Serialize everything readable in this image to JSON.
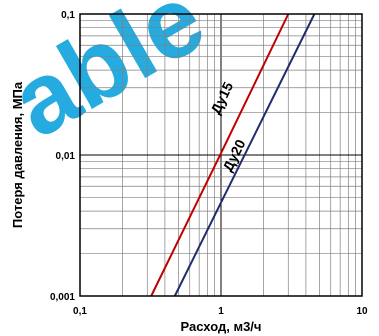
{
  "chart_data": {
    "type": "line",
    "title": "",
    "xlabel": "Расход, м3/ч",
    "ylabel": "Потеря давления, МПа",
    "xscale": "log",
    "yscale": "log",
    "xlim": [
      0.1,
      10
    ],
    "ylim": [
      0.001,
      0.1
    ],
    "grid": true,
    "x_tick_labels": [
      "0,1",
      "1",
      "10"
    ],
    "y_tick_labels": [
      "0,001",
      "0,01",
      "0,1"
    ],
    "series": [
      {
        "name": "Ду15",
        "color": "#c00000",
        "x": [
          0.32,
          1.0,
          3.0
        ],
        "y": [
          0.001,
          0.0103,
          0.1
        ]
      },
      {
        "name": "Ду20",
        "color": "#1f2d6e",
        "x": [
          0.47,
          1.0,
          4.6
        ],
        "y": [
          0.001,
          0.0046,
          0.1
        ]
      }
    ]
  },
  "watermark": "able",
  "colors": {
    "watermark": "#1aa7de",
    "grid": "#808080",
    "axis": "#000000"
  }
}
